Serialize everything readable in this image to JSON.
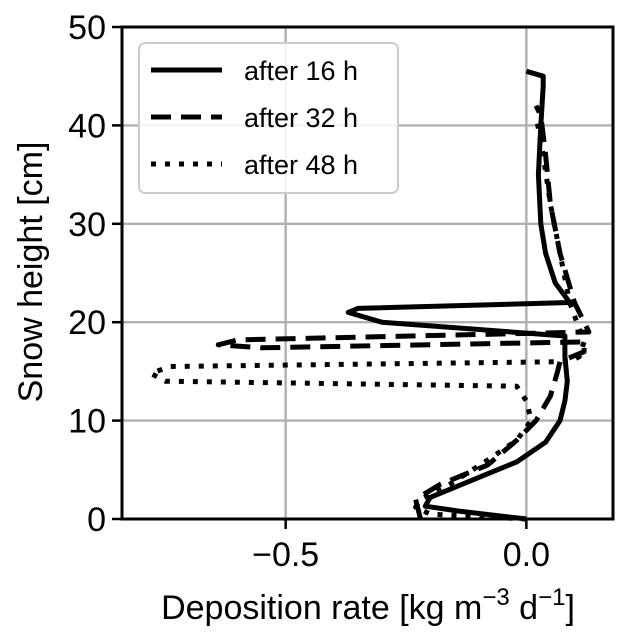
{
  "chart_data": {
    "type": "line",
    "xlabel": "Deposition rate [kg m",
    "xlabel_unit_sup1": "−3",
    "xlabel_mid": " d",
    "xlabel_unit_sup2": "−1",
    "xlabel_end": "]",
    "ylabel": "Snow height [cm]",
    "xlim": [
      -0.84,
      0.18
    ],
    "ylim": [
      0,
      50
    ],
    "xticks": [
      -0.5,
      0.0
    ],
    "xtick_labels": [
      "−0.5",
      "0.0"
    ],
    "yticks": [
      0,
      10,
      20,
      30,
      40,
      50
    ],
    "ytick_labels": [
      "0",
      "10",
      "20",
      "30",
      "40",
      "50"
    ],
    "grid": true,
    "legend_position": "top-left",
    "series": [
      {
        "name": "after 16 h",
        "style": "solid",
        "points": [
          [
            0.0,
            0.0
          ],
          [
            -0.14,
            0.8
          ],
          [
            -0.21,
            1.3
          ],
          [
            -0.2,
            2.2
          ],
          [
            -0.1,
            4.2
          ],
          [
            -0.02,
            5.8
          ],
          [
            0.04,
            7.8
          ],
          [
            0.07,
            10.0
          ],
          [
            0.08,
            12.0
          ],
          [
            0.085,
            14.0
          ],
          [
            0.08,
            16.5
          ],
          [
            0.08,
            18.6
          ],
          [
            -0.3,
            20.0
          ],
          [
            -0.37,
            21.0
          ],
          [
            -0.35,
            21.4
          ],
          [
            0.09,
            22.0
          ],
          [
            0.06,
            24.0
          ],
          [
            0.04,
            27.0
          ],
          [
            0.03,
            30.0
          ],
          [
            0.025,
            35.0
          ],
          [
            0.03,
            40.0
          ],
          [
            0.035,
            44.0
          ],
          [
            0.035,
            45.0
          ],
          [
            0.0,
            45.5
          ]
        ]
      },
      {
        "name": "after 32 h",
        "style": "dashed",
        "points": [
          [
            -0.22,
            0.0
          ],
          [
            -0.23,
            2.0
          ],
          [
            -0.18,
            3.5
          ],
          [
            -0.08,
            5.5
          ],
          [
            -0.02,
            8.0
          ],
          [
            0.02,
            10.0
          ],
          [
            0.05,
            12.5
          ],
          [
            0.065,
            15.0
          ],
          [
            0.07,
            16.0
          ],
          [
            0.12,
            17.0
          ],
          [
            0.12,
            18.0
          ],
          [
            -0.55,
            17.4
          ],
          [
            -0.64,
            17.7
          ],
          [
            -0.6,
            18.2
          ],
          [
            0.13,
            19.0
          ],
          [
            0.1,
            22.0
          ],
          [
            0.07,
            27.0
          ],
          [
            0.05,
            32.0
          ],
          [
            0.04,
            37.0
          ],
          [
            0.03,
            41.0
          ],
          [
            0.02,
            42.0
          ]
        ]
      },
      {
        "name": "after 48 h",
        "style": "dotted",
        "points": [
          [
            0.0,
            0.0
          ],
          [
            -0.2,
            0.5
          ],
          [
            -0.23,
            1.2
          ],
          [
            -0.22,
            2.0
          ],
          [
            -0.16,
            3.5
          ],
          [
            -0.08,
            6.0
          ],
          [
            -0.02,
            8.0
          ],
          [
            0.01,
            10.0
          ],
          [
            0.0,
            12.0
          ],
          [
            -0.02,
            13.5
          ],
          [
            -0.75,
            14.0
          ],
          [
            -0.78,
            14.8
          ],
          [
            -0.74,
            15.5
          ],
          [
            0.09,
            16.0
          ],
          [
            0.11,
            16.5
          ],
          [
            0.12,
            18.0
          ],
          [
            0.09,
            22.0
          ],
          [
            0.07,
            27.0
          ],
          [
            0.05,
            32.0
          ],
          [
            0.035,
            37.0
          ],
          [
            0.02,
            41.0
          ]
        ]
      }
    ]
  }
}
